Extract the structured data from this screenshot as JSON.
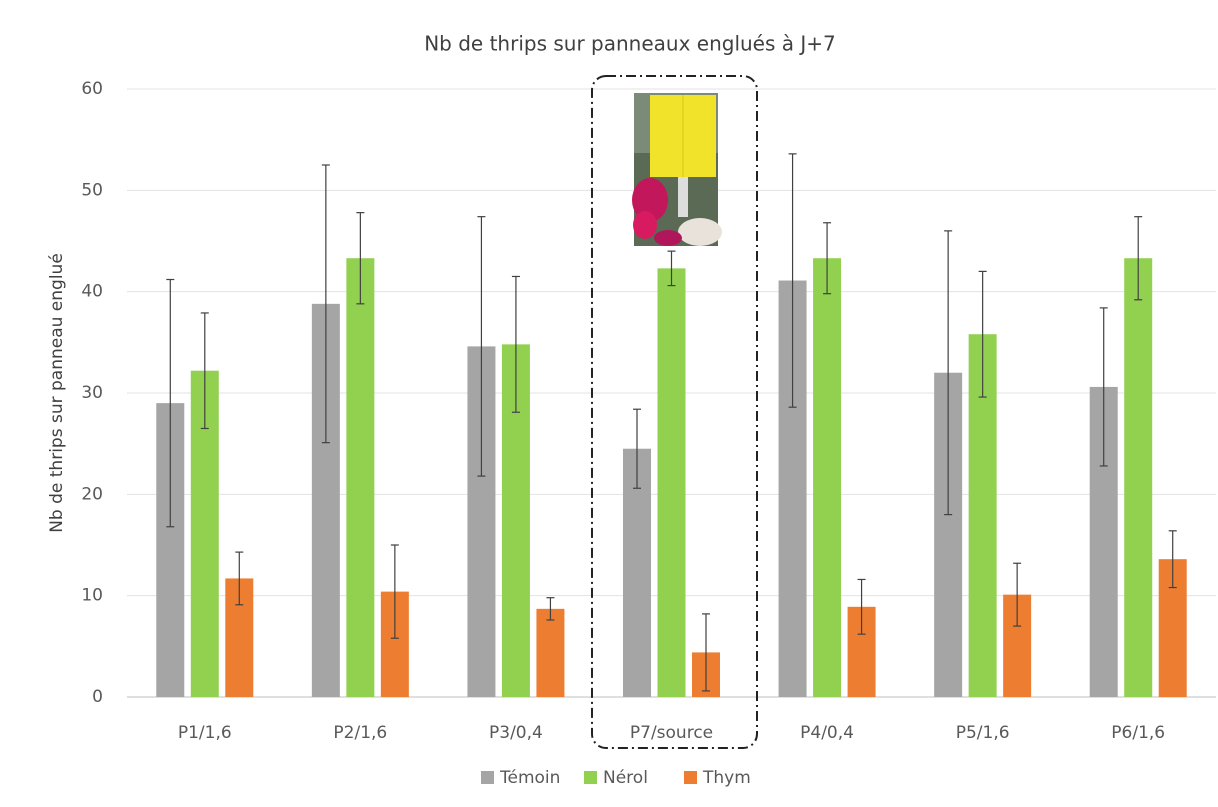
{
  "chart_data": {
    "type": "bar",
    "title": "Nb de thrips sur panneaux englués à J+7",
    "y_label": "Nb de thrips sur panneau englué",
    "categories": [
      "P1/1,6",
      "P2/1,6",
      "P3/0,4",
      "P7/source",
      "P4/0,4",
      "P5/1,6",
      "P6/1,6"
    ],
    "series": [
      {
        "name": "Témoin",
        "color": "#a5a5a5",
        "values": [
          29,
          38.8,
          34.6,
          24.5,
          41.1,
          32,
          30.6
        ],
        "errors": [
          12.2,
          13.7,
          12.8,
          3.9,
          12.5,
          14,
          7.8
        ]
      },
      {
        "name": "Nérol",
        "color": "#92d050",
        "values": [
          32.2,
          43.3,
          34.8,
          42.3,
          43.3,
          35.8,
          43.3
        ],
        "errors": [
          5.7,
          4.5,
          6.7,
          1.7,
          3.5,
          6.2,
          4.1
        ]
      },
      {
        "name": "Thym",
        "color": "#ed7d31",
        "values": [
          11.7,
          10.4,
          8.7,
          4.4,
          8.9,
          10.1,
          13.6
        ],
        "errors": [
          2.6,
          4.6,
          1.1,
          3.8,
          2.7,
          3.1,
          2.8
        ]
      }
    ],
    "ylim": [
      0,
      60
    ],
    "yticks": [
      0,
      10,
      20,
      30,
      40,
      50,
      60
    ],
    "grid": true,
    "legend": "bottom"
  }
}
